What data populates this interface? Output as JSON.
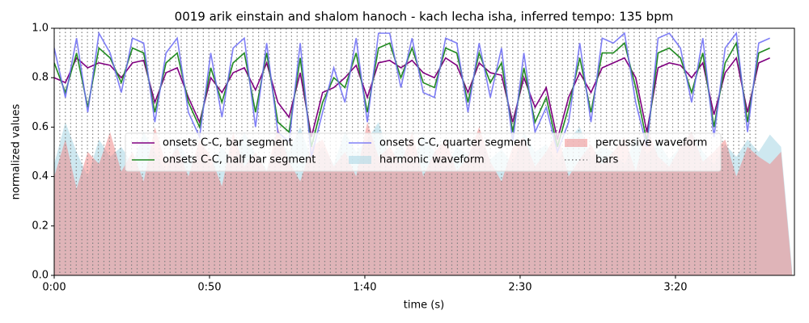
{
  "chart_data": {
    "type": "line",
    "title": "0019 arik einstain and shalom hanoch - kach lecha isha, inferred tempo: 135 bpm",
    "x_label": "time (s)",
    "y_label": "normalized values",
    "xlim": [
      0,
      238.3
    ],
    "ylim": [
      0,
      1
    ],
    "xticks": [
      {
        "value": 0,
        "label": "0:00"
      },
      {
        "value": 50,
        "label": "0:50"
      },
      {
        "value": 100,
        "label": "1:40"
      },
      {
        "value": 150,
        "label": "2:30"
      },
      {
        "value": 200,
        "label": "3:20"
      }
    ],
    "yticks": [
      {
        "value": 0,
        "label": "0.0"
      },
      {
        "value": 0.2,
        "label": "0.2"
      },
      {
        "value": 0.4,
        "label": "0.4"
      },
      {
        "value": 0.6,
        "label": "0.6"
      },
      {
        "value": 0.8,
        "label": "0.8"
      },
      {
        "value": 1,
        "label": "1.0"
      }
    ],
    "legend": "upper center",
    "series": [
      {
        "name": "onsets C-C, bar segment",
        "kind": "line",
        "color": "#800080",
        "x": [
          0,
          3.6,
          7.2,
          10.8,
          14.4,
          18,
          21.6,
          25.2,
          28.8,
          32.4,
          36,
          39.6,
          43.2,
          46.8,
          50.4,
          54,
          57.6,
          61.2,
          64.8,
          68.4,
          72,
          75.6,
          79.2,
          82.8,
          86.4,
          90,
          93.6,
          97.2,
          100.8,
          104.4,
          108,
          111.6,
          115.2,
          118.8,
          122.4,
          126,
          129.6,
          133.2,
          136.8,
          140.4,
          144,
          147.6,
          151.2,
          154.8,
          158.4,
          162,
          165.6,
          169.2,
          172.8,
          176.4,
          180,
          183.6,
          187.2,
          190.8,
          194.4,
          198,
          201.6,
          205.2,
          208.8,
          212.4,
          216,
          219.6,
          223.2,
          226.8,
          230.4
        ],
        "values": [
          0.8,
          0.78,
          0.88,
          0.84,
          0.86,
          0.85,
          0.8,
          0.86,
          0.87,
          0.7,
          0.82,
          0.84,
          0.72,
          0.62,
          0.8,
          0.74,
          0.82,
          0.84,
          0.75,
          0.86,
          0.7,
          0.64,
          0.82,
          0.56,
          0.74,
          0.76,
          0.8,
          0.85,
          0.72,
          0.86,
          0.87,
          0.84,
          0.87,
          0.82,
          0.8,
          0.88,
          0.85,
          0.74,
          0.86,
          0.82,
          0.81,
          0.62,
          0.8,
          0.68,
          0.76,
          0.55,
          0.72,
          0.82,
          0.74,
          0.84,
          0.86,
          0.88,
          0.8,
          0.58,
          0.84,
          0.86,
          0.85,
          0.8,
          0.86,
          0.65,
          0.82,
          0.88,
          0.66,
          0.86,
          0.88
        ]
      },
      {
        "name": "onsets C-C, half bar segment",
        "kind": "line",
        "color": "#228b22",
        "x": [
          0,
          3.6,
          7.2,
          10.8,
          14.4,
          18,
          21.6,
          25.2,
          28.8,
          32.4,
          36,
          39.6,
          43.2,
          46.8,
          50.4,
          54,
          57.6,
          61.2,
          64.8,
          68.4,
          72,
          75.6,
          79.2,
          82.8,
          86.4,
          90,
          93.6,
          97.2,
          100.8,
          104.4,
          108,
          111.6,
          115.2,
          118.8,
          122.4,
          126,
          129.6,
          133.2,
          136.8,
          140.4,
          144,
          147.6,
          151.2,
          154.8,
          158.4,
          162,
          165.6,
          169.2,
          172.8,
          176.4,
          180,
          183.6,
          187.2,
          190.8,
          194.4,
          198,
          201.6,
          205.2,
          208.8,
          212.4,
          216,
          219.6,
          223.2,
          226.8,
          230.4
        ],
        "values": [
          0.86,
          0.74,
          0.9,
          0.68,
          0.92,
          0.88,
          0.78,
          0.92,
          0.9,
          0.66,
          0.86,
          0.9,
          0.7,
          0.6,
          0.84,
          0.7,
          0.86,
          0.9,
          0.66,
          0.9,
          0.62,
          0.58,
          0.88,
          0.52,
          0.7,
          0.8,
          0.76,
          0.9,
          0.66,
          0.92,
          0.94,
          0.8,
          0.92,
          0.78,
          0.76,
          0.92,
          0.9,
          0.7,
          0.9,
          0.78,
          0.86,
          0.58,
          0.84,
          0.62,
          0.72,
          0.52,
          0.68,
          0.88,
          0.66,
          0.9,
          0.9,
          0.94,
          0.76,
          0.54,
          0.9,
          0.92,
          0.88,
          0.74,
          0.9,
          0.6,
          0.86,
          0.94,
          0.62,
          0.9,
          0.92
        ]
      },
      {
        "name": "onsets C-C, quarter segment",
        "kind": "line",
        "color": "#6a6af5",
        "x": [
          0,
          3.6,
          7.2,
          10.8,
          14.4,
          18,
          21.6,
          25.2,
          28.8,
          32.4,
          36,
          39.6,
          43.2,
          46.8,
          50.4,
          54,
          57.6,
          61.2,
          64.8,
          68.4,
          72,
          75.6,
          79.2,
          82.8,
          86.4,
          90,
          93.6,
          97.2,
          100.8,
          104.4,
          108,
          111.6,
          115.2,
          118.8,
          122.4,
          126,
          129.6,
          133.2,
          136.8,
          140.4,
          144,
          147.6,
          151.2,
          154.8,
          158.4,
          162,
          165.6,
          169.2,
          172.8,
          176.4,
          180,
          183.6,
          187.2,
          190.8,
          194.4,
          198,
          201.6,
          205.2,
          208.8,
          212.4,
          216,
          219.6,
          223.2,
          226.8,
          230.4
        ],
        "values": [
          0.92,
          0.72,
          0.96,
          0.66,
          0.98,
          0.9,
          0.74,
          0.96,
          0.94,
          0.62,
          0.9,
          0.96,
          0.66,
          0.56,
          0.9,
          0.64,
          0.92,
          0.96,
          0.6,
          0.94,
          0.58,
          0.54,
          0.94,
          0.48,
          0.66,
          0.84,
          0.7,
          0.96,
          0.62,
          0.98,
          0.98,
          0.76,
          0.96,
          0.74,
          0.72,
          0.96,
          0.94,
          0.66,
          0.94,
          0.72,
          0.92,
          0.54,
          0.9,
          0.58,
          0.68,
          0.5,
          0.62,
          0.94,
          0.62,
          0.96,
          0.94,
          0.98,
          0.7,
          0.52,
          0.96,
          0.98,
          0.92,
          0.7,
          0.96,
          0.56,
          0.92,
          0.98,
          0.58,
          0.94,
          0.96
        ]
      },
      {
        "name": "harmonic waveform",
        "kind": "area",
        "color": "#add8e6",
        "x": [
          0,
          3.6,
          7.2,
          10.8,
          14.4,
          18,
          21.6,
          25.2,
          28.8,
          32.4,
          36,
          39.6,
          43.2,
          46.8,
          50.4,
          54,
          57.6,
          61.2,
          64.8,
          68.4,
          72,
          75.6,
          79.2,
          82.8,
          86.4,
          90,
          93.6,
          97.2,
          100.8,
          104.4,
          108,
          111.6,
          115.2,
          118.8,
          122.4,
          126,
          129.6,
          133.2,
          136.8,
          140.4,
          144,
          147.6,
          151.2,
          154.8,
          158.4,
          162,
          165.6,
          169.2,
          172.8,
          176.4,
          180,
          183.6,
          187.2,
          190.8,
          194.4,
          198,
          201.6,
          205.2,
          208.8,
          212.4,
          216,
          219.6,
          223.2,
          226.8,
          230.4,
          234,
          237.6
        ],
        "values": [
          0.45,
          0.62,
          0.5,
          0.4,
          0.55,
          0.48,
          0.52,
          0.45,
          0.58,
          0.5,
          0.42,
          0.55,
          0.47,
          0.5,
          0.44,
          0.52,
          0.46,
          0.58,
          0.49,
          0.43,
          0.55,
          0.5,
          0.6,
          0.47,
          0.52,
          0.45,
          0.58,
          0.5,
          0.55,
          0.62,
          0.48,
          0.53,
          0.46,
          0.57,
          0.5,
          0.44,
          0.52,
          0.49,
          0.55,
          0.47,
          0.51,
          0.45,
          0.58,
          0.5,
          0.53,
          0.46,
          0.55,
          0.6,
          0.48,
          0.52,
          0.5,
          0.45,
          0.56,
          0.49,
          0.54,
          0.47,
          0.52,
          0.58,
          0.5,
          0.45,
          0.53,
          0.48,
          0.55,
          0.5,
          0.57,
          0.52,
          0.02
        ]
      },
      {
        "name": "percussive waveform",
        "kind": "area",
        "color": "#f08080",
        "x": [
          0,
          3.6,
          7.2,
          10.8,
          14.4,
          18,
          21.6,
          25.2,
          28.8,
          32.4,
          36,
          39.6,
          43.2,
          46.8,
          50.4,
          54,
          57.6,
          61.2,
          64.8,
          68.4,
          72,
          75.6,
          79.2,
          82.8,
          86.4,
          90,
          93.6,
          97.2,
          100.8,
          104.4,
          108,
          111.6,
          115.2,
          118.8,
          122.4,
          126,
          129.6,
          133.2,
          136.8,
          140.4,
          144,
          147.6,
          151.2,
          154.8,
          158.4,
          162,
          165.6,
          169.2,
          172.8,
          176.4,
          180,
          183.6,
          187.2,
          190.8,
          194.4,
          198,
          201.6,
          205.2,
          208.8,
          212.4,
          216,
          219.6,
          223.2,
          226.8,
          230.4,
          234,
          237.6
        ],
        "values": [
          0.4,
          0.55,
          0.35,
          0.5,
          0.45,
          0.58,
          0.42,
          0.5,
          0.38,
          0.6,
          0.45,
          0.52,
          0.4,
          0.55,
          0.48,
          0.36,
          0.58,
          0.44,
          0.5,
          0.42,
          0.6,
          0.46,
          0.38,
          0.52,
          0.55,
          0.44,
          0.5,
          0.4,
          0.62,
          0.48,
          0.52,
          0.45,
          0.58,
          0.4,
          0.5,
          0.55,
          0.42,
          0.48,
          0.6,
          0.46,
          0.38,
          0.52,
          0.56,
          0.44,
          0.5,
          0.58,
          0.4,
          0.47,
          0.53,
          0.45,
          0.5,
          0.56,
          0.42,
          0.6,
          0.48,
          0.44,
          0.52,
          0.58,
          0.46,
          0.5,
          0.55,
          0.4,
          0.52,
          0.48,
          0.45,
          0.5,
          0.0
        ]
      },
      {
        "name": "bars",
        "kind": "vlines",
        "color": "#808080",
        "x": [
          0.0,
          1.8,
          3.6,
          5.3,
          7.1,
          8.9,
          10.7,
          12.4,
          14.2,
          16.0,
          17.8,
          19.6,
          21.3,
          23.1,
          24.9,
          26.7,
          28.4,
          30.2,
          32.0,
          33.8,
          35.6,
          37.3,
          39.1,
          40.9,
          42.7,
          44.4,
          46.2,
          48.0,
          49.8,
          51.6,
          53.3,
          55.1,
          56.9,
          58.7,
          60.4,
          62.2,
          64.0,
          65.8,
          67.6,
          69.3,
          71.1,
          72.9,
          74.7,
          76.4,
          78.2,
          80.0,
          81.8,
          83.6,
          85.3,
          87.1,
          88.9,
          90.7,
          92.4,
          94.2,
          96.0,
          97.8,
          99.6,
          101.3,
          103.1,
          104.9,
          106.7,
          108.4,
          110.2,
          112.0,
          113.8,
          115.6,
          117.3,
          119.1,
          120.9,
          122.7,
          124.4,
          126.2,
          128.0,
          129.8,
          131.6,
          133.3,
          135.1,
          136.9,
          138.7,
          140.4,
          142.2,
          144.0,
          145.8,
          147.6,
          149.3,
          151.1,
          152.9,
          154.7,
          156.4,
          158.2,
          160.0,
          161.8,
          163.6,
          165.3,
          167.1,
          168.9,
          170.7,
          172.4,
          174.2,
          176.0,
          177.8,
          179.6,
          181.3,
          183.1,
          184.9,
          186.7,
          188.4,
          190.2,
          192.0,
          193.8,
          195.6,
          197.3,
          199.1,
          200.9,
          202.7,
          204.4,
          206.2,
          208.0,
          209.8,
          211.6,
          213.3,
          215.1,
          216.9,
          218.7,
          220.4,
          222.2,
          224.0,
          225.8
        ]
      }
    ]
  }
}
